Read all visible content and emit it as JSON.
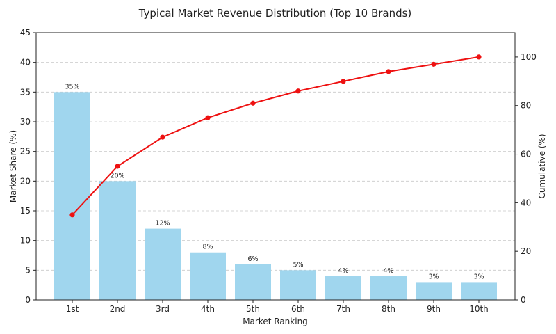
{
  "chart_data": {
    "type": "bar",
    "title": "Typical Market Revenue Distribution (Top 10 Brands)",
    "xlabel": "Market Ranking",
    "ylabel": "Market Share (%)",
    "y2label": "Cumulative (%)",
    "categories": [
      "1st",
      "2nd",
      "3rd",
      "4th",
      "5th",
      "6th",
      "7th",
      "8th",
      "9th",
      "10th"
    ],
    "series": [
      {
        "type": "bar",
        "axis": "left",
        "values": [
          35,
          20,
          12,
          8,
          6,
          5,
          4,
          4,
          3,
          3
        ],
        "labels": [
          "35%",
          "20%",
          "12%",
          "8%",
          "6%",
          "5%",
          "4%",
          "4%",
          "3%",
          "3%"
        ],
        "color": "#a0d6ee"
      },
      {
        "type": "line",
        "axis": "right",
        "values": [
          35,
          55,
          67,
          75,
          81,
          86,
          90,
          94,
          97,
          100
        ],
        "color": "#ee1111",
        "marker": "circle"
      }
    ],
    "ylim": [
      0,
      45
    ],
    "yticks": [
      "0",
      "5",
      "10",
      "15",
      "20",
      "25",
      "30",
      "35",
      "40",
      "45"
    ],
    "y2lim": [
      0,
      110
    ],
    "y2ticks": [
      "0",
      "20",
      "40",
      "60",
      "80",
      "100"
    ],
    "grid": "horizontal-dashed",
    "legend": "none"
  }
}
